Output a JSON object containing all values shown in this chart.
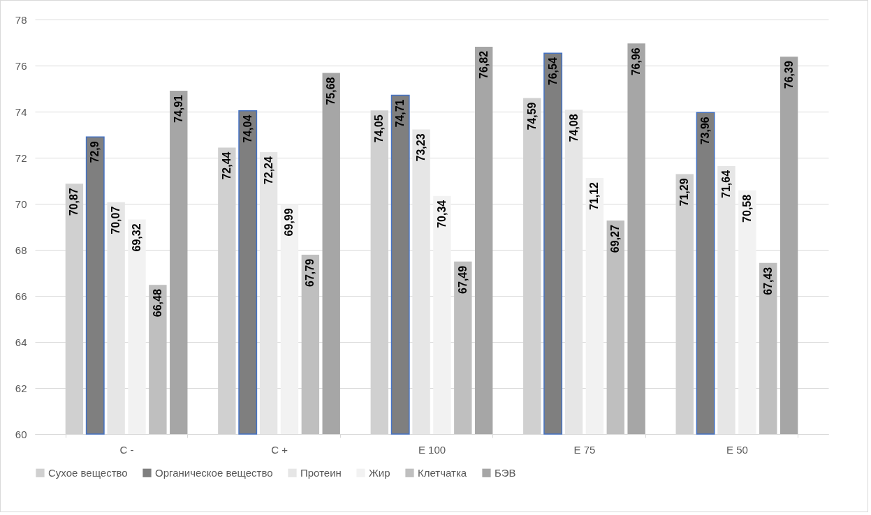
{
  "chart_data": {
    "type": "bar",
    "categories": [
      "С -",
      "С +",
      "Е 100",
      "Е 75",
      "Е 50"
    ],
    "series": [
      {
        "name": "Сухое вещество",
        "color": "#d0d0d0",
        "values": [
          70.87,
          72.44,
          74.05,
          74.59,
          71.29
        ],
        "value_labels": [
          "70,87",
          "72,44",
          "74,05",
          "74,59",
          "71,29"
        ]
      },
      {
        "name": "Органическое вещество",
        "color": "#7f7f7f",
        "values": [
          72.9,
          74.04,
          74.71,
          76.54,
          73.96
        ],
        "value_labels": [
          "72,9",
          "74,04",
          "74,71",
          "76,54",
          "73,96"
        ]
      },
      {
        "name": "Протеин",
        "color": "#e6e6e6",
        "values": [
          70.07,
          72.24,
          73.23,
          74.08,
          71.64
        ],
        "value_labels": [
          "70,07",
          "72,24",
          "73,23",
          "74,08",
          "71,64"
        ]
      },
      {
        "name": "Жир",
        "color": "#f2f2f2",
        "values": [
          69.32,
          69.99,
          70.34,
          71.12,
          70.58
        ],
        "value_labels": [
          "69,32",
          "69,99",
          "70,34",
          "71,12",
          "70,58"
        ]
      },
      {
        "name": "Клетчатка",
        "color": "#bfbfbf",
        "values": [
          66.48,
          67.79,
          67.49,
          69.27,
          67.43
        ],
        "value_labels": [
          "66,48",
          "67,79",
          "67,49",
          "69,27",
          "67,43"
        ]
      },
      {
        "name": "БЭВ",
        "color": "#a6a6a6",
        "values": [
          74.91,
          75.68,
          76.82,
          76.96,
          76.39
        ],
        "value_labels": [
          "74,91",
          "75,68",
          "76,82",
          "76,96",
          "76,39"
        ]
      }
    ],
    "ylim": [
      60,
      78
    ],
    "yticks": [
      60,
      62,
      64,
      66,
      68,
      70,
      72,
      74,
      76,
      78
    ],
    "grid": "y",
    "legend": "bottom"
  }
}
